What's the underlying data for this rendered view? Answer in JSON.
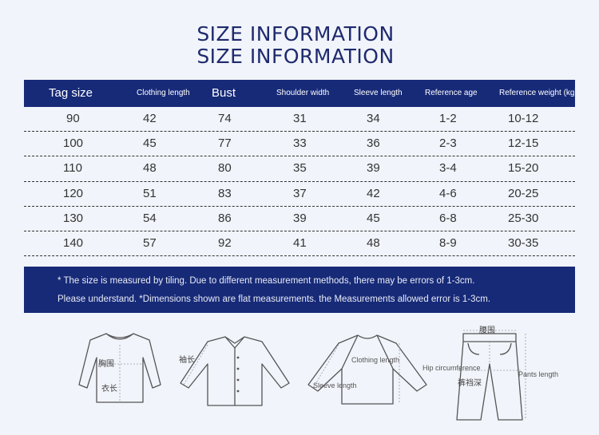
{
  "titles": [
    "SIZE INFORMATION",
    "SIZE INFORMATION"
  ],
  "table": {
    "headers": [
      "Tag size",
      "Clothing length",
      "Bust",
      "Shoulder width",
      "Sleeve length",
      "Reference age",
      "Reference weight (kg)"
    ],
    "rows": [
      [
        "90",
        "42",
        "74",
        "31",
        "34",
        "1-2",
        "10-12"
      ],
      [
        "100",
        "45",
        "77",
        "33",
        "36",
        "2-3",
        "12-15"
      ],
      [
        "110",
        "48",
        "80",
        "35",
        "39",
        "3-4",
        "15-20"
      ],
      [
        "120",
        "51",
        "83",
        "37",
        "42",
        "4-6",
        "20-25"
      ],
      [
        "130",
        "54",
        "86",
        "39",
        "45",
        "6-8",
        "25-30"
      ],
      [
        "140",
        "57",
        "92",
        "41",
        "48",
        "8-9",
        "30-35"
      ]
    ]
  },
  "notes": [
    "* The size is measured by tiling. Due to different measurement methods, there may be errors of 1-3cm.",
    "Please understand. *Dimensions shown are flat measurements. the Measurements allowed error is 1-3cm."
  ],
  "diagrams": {
    "sweater": {
      "bust_label": "胸围",
      "length_label": "衣长"
    },
    "shirt": {
      "sleeve_label": "袖长"
    },
    "raglan": {
      "clothing_length_label": "Clothing length",
      "sleeve_length_label": "Sleeve length"
    },
    "pants": {
      "waist_label": "腰围",
      "hip_label": "Hip circumference",
      "rise_label": "裤裆深",
      "pants_length_label": "Pants length"
    }
  },
  "colors": {
    "header_bg": "#172a78",
    "title": "#1f2a6e",
    "page_bg": "#f1f4fa"
  }
}
